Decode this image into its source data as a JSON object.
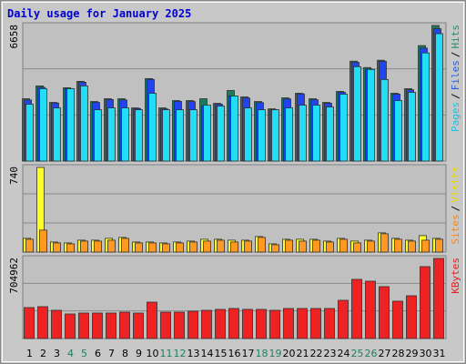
{
  "chart_data": [
    {
      "type": "bar",
      "title": "Daily usage for January 2025",
      "ylim": [
        0,
        6658
      ],
      "yticks": [
        6658
      ],
      "legend_separator": "/",
      "series": [
        {
          "name": "Hits",
          "color": "#1e7a5e",
          "label_color": "#2c8a70",
          "values": [
            3060,
            3690,
            2880,
            3600,
            3915,
            2925,
            3060,
            3060,
            2610,
            4050,
            2610,
            2970,
            2970,
            3060,
            2835,
            3465,
            3150,
            2925,
            2565,
            3105,
            3330,
            3060,
            2880,
            3420,
            4905,
            4590,
            4950,
            3330,
            3555,
            5670,
            6658
          ]
        },
        {
          "name": "Files",
          "color": "#2244ee",
          "label_color": "#2a5be0",
          "values": [
            3000,
            3620,
            2850,
            3560,
            3870,
            2880,
            3020,
            3000,
            2580,
            4010,
            2560,
            2930,
            2920,
            2700,
            2790,
            3200,
            3100,
            2870,
            2520,
            3050,
            3300,
            3010,
            2840,
            3380,
            4850,
            4520,
            4900,
            3290,
            3500,
            5550,
            6500
          ]
        },
        {
          "name": "Pages",
          "color": "#22ddf6",
          "label_color": "#22c0dd",
          "values": [
            2790,
            3555,
            2610,
            3555,
            3690,
            2520,
            2610,
            2610,
            2520,
            3330,
            2520,
            2520,
            2520,
            2745,
            2700,
            3195,
            2610,
            2520,
            2520,
            2610,
            2745,
            2745,
            2655,
            3285,
            4635,
            4500,
            4005,
            2970,
            3375,
            5310,
            6255
          ]
        }
      ]
    },
    {
      "type": "bar",
      "ylim": [
        0,
        740
      ],
      "yticks": [
        740
      ],
      "legend_separator": "/",
      "series": [
        {
          "name": "Visits",
          "color": "#ffff22",
          "label_color": "#e8d800",
          "values": [
            120,
            740,
            88,
            80,
            104,
            104,
            120,
            128,
            88,
            88,
            80,
            88,
            96,
            112,
            112,
            104,
            104,
            136,
            72,
            112,
            112,
            112,
            96,
            120,
            96,
            104,
            168,
            120,
            104,
            144,
            120
          ]
        },
        {
          "name": "Sites",
          "color": "#ff9922",
          "label_color": "#f08a20",
          "values": [
            112,
            192,
            80,
            72,
            96,
            96,
            104,
            120,
            80,
            80,
            72,
            80,
            88,
            96,
            104,
            88,
            96,
            128,
            64,
            104,
            96,
            104,
            88,
            112,
            80,
            96,
            160,
            112,
            96,
            104,
            112
          ]
        }
      ]
    },
    {
      "type": "bar",
      "ylim": [
        0,
        704962
      ],
      "yticks": [
        704962
      ],
      "categories": [
        "1",
        "2",
        "3",
        "4",
        "5",
        "6",
        "7",
        "8",
        "9",
        "10",
        "11",
        "12",
        "13",
        "14",
        "15",
        "16",
        "17",
        "18",
        "19",
        "20",
        "21",
        "22",
        "23",
        "24",
        "25",
        "26",
        "27",
        "28",
        "29",
        "30",
        "31"
      ],
      "category_colors": [
        "#000000",
        "#000000",
        "#000000",
        "#208060",
        "#208060",
        "#000000",
        "#000000",
        "#000000",
        "#000000",
        "#000000",
        "#208060",
        "#208060",
        "#000000",
        "#000000",
        "#000000",
        "#000000",
        "#000000",
        "#208060",
        "#208060",
        "#000000",
        "#000000",
        "#000000",
        "#000000",
        "#000000",
        "#208060",
        "#208060",
        "#000000",
        "#000000",
        "#000000",
        "#000000",
        "#000000"
      ],
      "series": [
        {
          "name": "KBytes",
          "color": "#ee2222",
          "label_color": "#e02020",
          "values": [
            272400,
            280400,
            248300,
            216300,
            224300,
            224300,
            224300,
            232300,
            224300,
            320400,
            232300,
            232300,
            240300,
            248300,
            256400,
            264400,
            256400,
            256400,
            248300,
            264400,
            264400,
            264400,
            264400,
            336500,
            520700,
            504700,
            456600,
            328500,
            376500,
            632900,
            704962
          ]
        }
      ]
    }
  ]
}
